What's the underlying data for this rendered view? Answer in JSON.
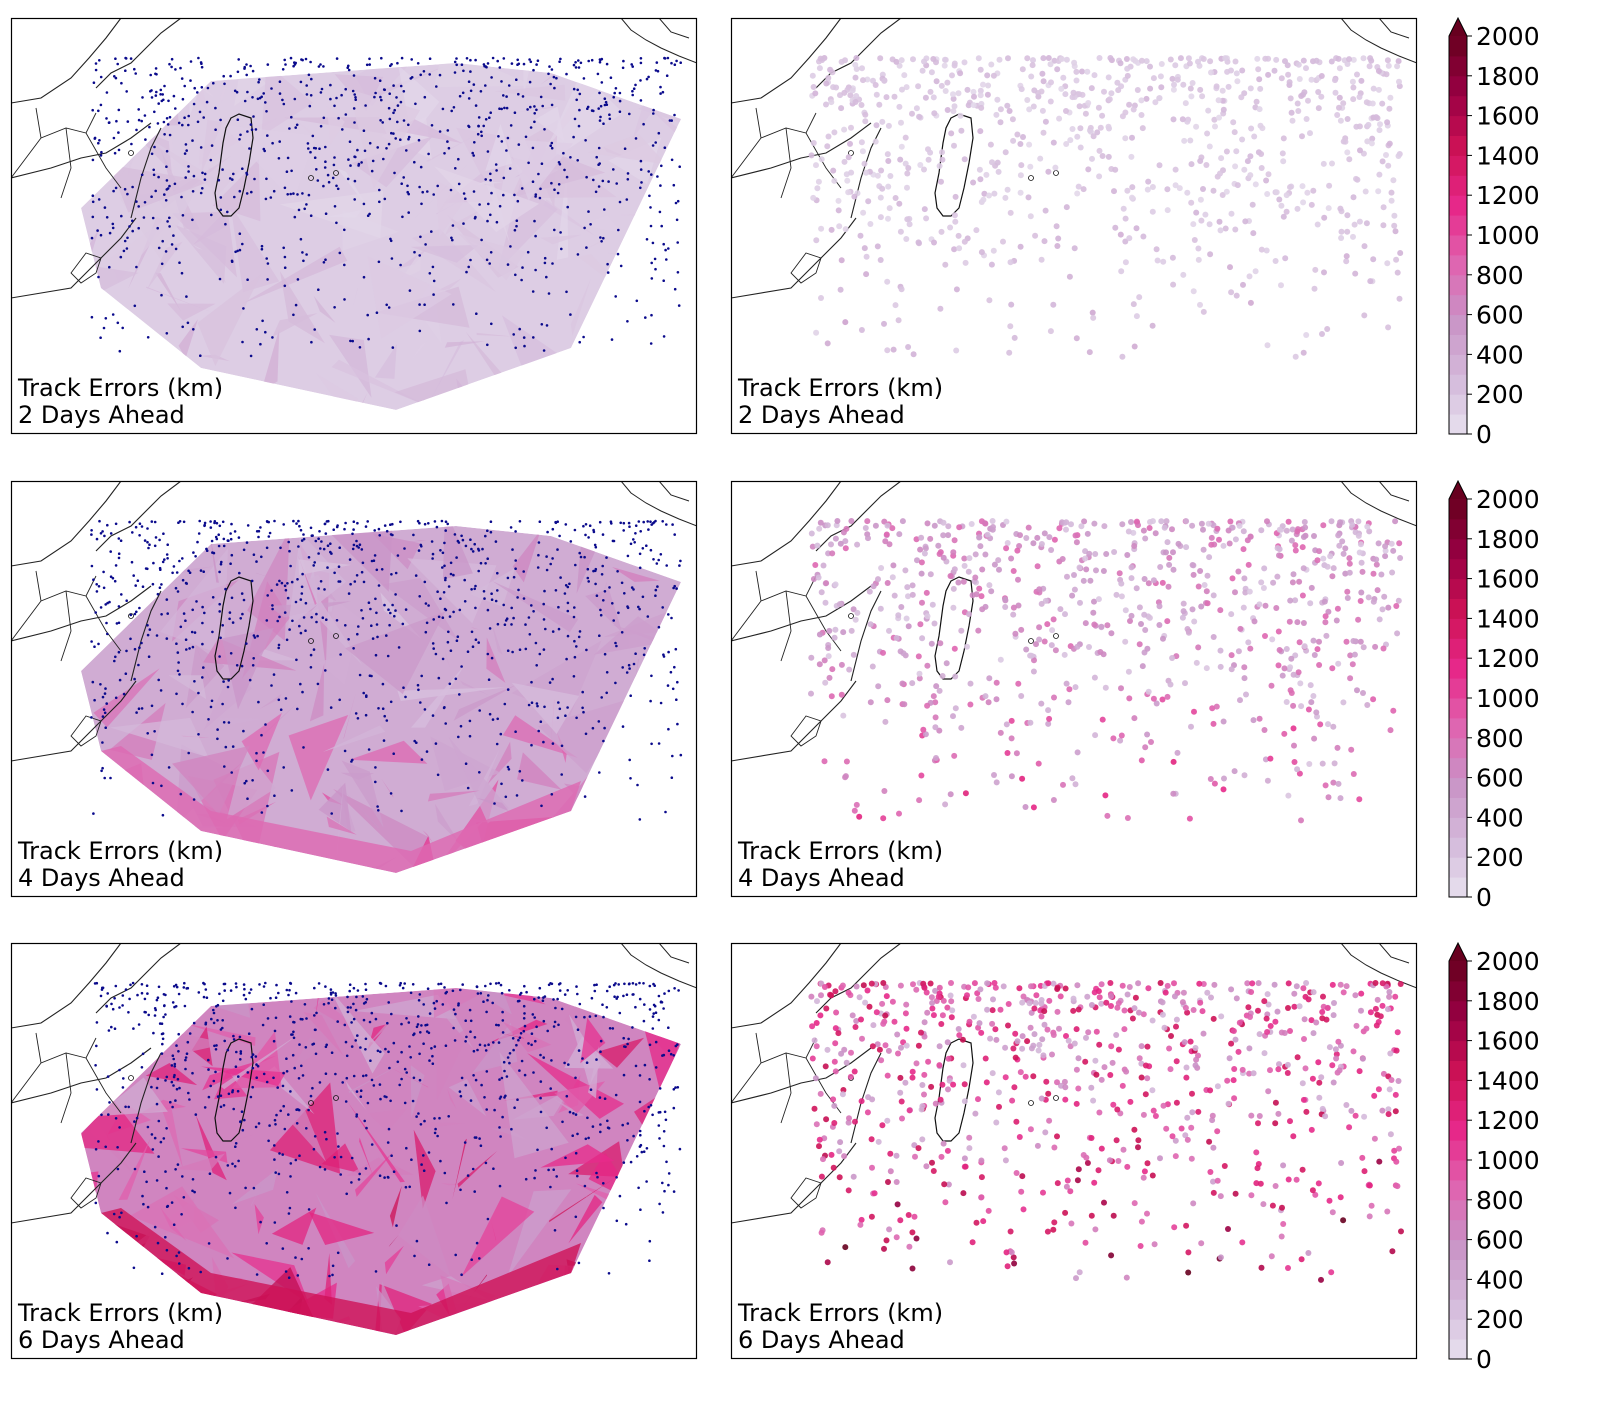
{
  "figure": {
    "colormap": {
      "name": "PuRd",
      "stops": [
        "#e7e1ef",
        "#d4b9da",
        "#c994c7",
        "#df65b0",
        "#e7298a",
        "#ce1256",
        "#980043",
        "#67001f"
      ],
      "extend": "max"
    },
    "colorbar": {
      "ticks": [
        "0",
        "200",
        "400",
        "600",
        "800",
        "1000",
        "1200",
        "1400",
        "1600",
        "1800",
        "2000"
      ],
      "vmin": 0,
      "vmax": 2000,
      "levels": 20
    },
    "rows": [
      {
        "lead_days": 2,
        "left": {
          "line1": "Track Errors (km)",
          "line2": "2 Days Ahead"
        },
        "right": {
          "line1": "Track Errors (km)",
          "line2": "2 Days Ahead"
        }
      },
      {
        "lead_days": 4,
        "left": {
          "line1": "Track Errors (km)",
          "line2": "4 Days Ahead"
        },
        "right": {
          "line1": "Track Errors (km)",
          "line2": "4 Days Ahead"
        }
      },
      {
        "lead_days": 6,
        "left": {
          "line1": "Track Errors (km)",
          "line2": "6 Days Ahead"
        },
        "right": {
          "line1": "Track Errors (km)",
          "line2": "6 Days Ahead"
        }
      }
    ],
    "map_features": [
      "coastline",
      "country-borders",
      "madagascar",
      "mascarene-islands"
    ],
    "observation_marker_color": "#0a0a8c"
  }
}
